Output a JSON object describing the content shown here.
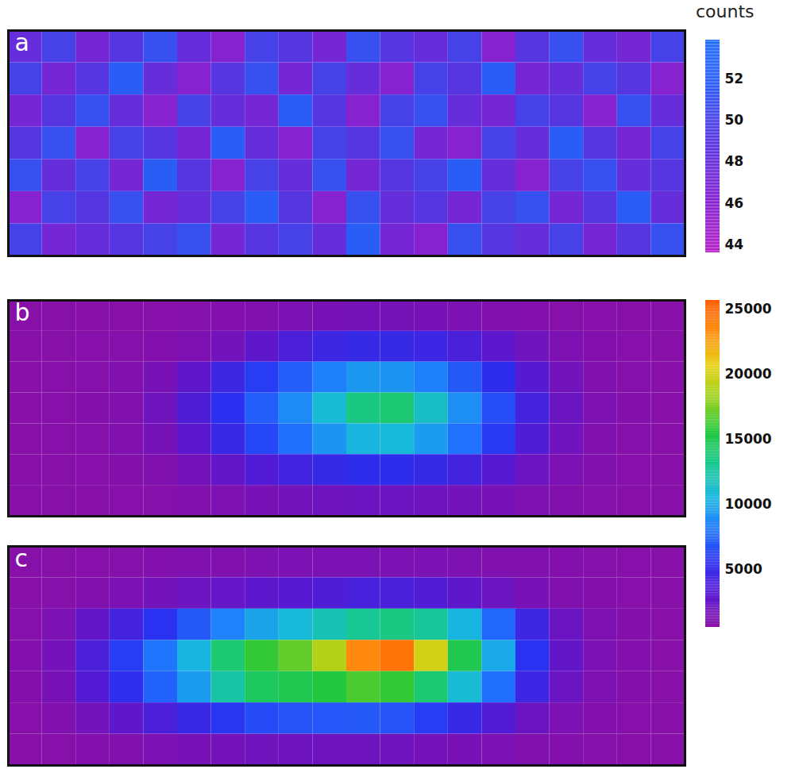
{
  "chart_data": {
    "type": "heatmap",
    "colorbars": [
      {
        "title": "counts",
        "range": [
          43.6,
          53.9
        ],
        "ticks": [
          44,
          46,
          48,
          50,
          52
        ],
        "panels": [
          "a"
        ]
      },
      {
        "range": [
          550,
          25700
        ],
        "ticks": [
          5000,
          10000,
          15000,
          20000,
          25000
        ],
        "panels": [
          "b",
          "c"
        ]
      }
    ],
    "panels": [
      {
        "label": "a",
        "cells": [
          [
            48,
            50,
            47,
            49,
            51,
            48,
            46,
            50,
            49,
            47,
            51,
            49,
            48,
            50,
            46,
            49,
            51,
            48,
            47,
            50
          ],
          [
            50,
            47,
            49,
            52,
            48,
            46,
            49,
            51,
            47,
            50,
            48,
            46,
            50,
            49,
            52,
            47,
            48,
            50,
            49,
            46
          ],
          [
            47,
            49,
            51,
            48,
            46,
            50,
            48,
            47,
            52,
            49,
            46,
            50,
            51,
            48,
            47,
            50,
            49,
            46,
            51,
            48
          ],
          [
            49,
            51,
            46,
            50,
            49,
            47,
            52,
            48,
            46,
            50,
            49,
            51,
            47,
            46,
            50,
            48,
            52,
            49,
            47,
            50
          ],
          [
            51,
            48,
            50,
            47,
            52,
            49,
            46,
            50,
            48,
            51,
            47,
            49,
            50,
            52,
            48,
            46,
            50,
            51,
            48,
            49
          ],
          [
            46,
            50,
            49,
            51,
            47,
            48,
            50,
            52,
            49,
            46,
            51,
            48,
            49,
            47,
            50,
            51,
            47,
            49,
            52,
            48
          ],
          [
            50,
            47,
            48,
            49,
            50,
            51,
            47,
            49,
            50,
            48,
            52,
            47,
            46,
            51,
            49,
            48,
            50,
            47,
            49,
            51
          ]
        ]
      },
      {
        "label": "b",
        "cells": [
          [
            700,
            700,
            700,
            700,
            750,
            800,
            900,
            1100,
            1300,
            1500,
            1600,
            1600,
            1500,
            1300,
            1100,
            900,
            800,
            750,
            700,
            700
          ],
          [
            700,
            700,
            750,
            800,
            900,
            1200,
            1800,
            2800,
            3800,
            4500,
            4900,
            4900,
            4600,
            3900,
            2900,
            1900,
            1200,
            900,
            750,
            700
          ],
          [
            700,
            750,
            800,
            1000,
            1500,
            2800,
            4500,
            6000,
            7200,
            8400,
            9300,
            9200,
            8400,
            7000,
            5300,
            3300,
            1800,
            1100,
            800,
            700
          ],
          [
            700,
            750,
            850,
            1100,
            1900,
            3600,
            5500,
            7200,
            8800,
            11000,
            13500,
            14000,
            11500,
            9000,
            6600,
            4200,
            2200,
            1200,
            850,
            700
          ],
          [
            700,
            750,
            800,
            1000,
            1600,
            3000,
            4800,
            6400,
            7800,
            9200,
            10500,
            10800,
            9500,
            7900,
            5900,
            3600,
            1900,
            1100,
            800,
            700
          ],
          [
            700,
            700,
            750,
            850,
            1100,
            1700,
            2600,
            3500,
            4300,
            4900,
            5300,
            5300,
            4900,
            4200,
            3200,
            2100,
            1300,
            950,
            750,
            700
          ],
          [
            700,
            700,
            700,
            750,
            800,
            950,
            1200,
            1500,
            1800,
            2000,
            2100,
            2100,
            2000,
            1800,
            1500,
            1200,
            950,
            800,
            700,
            700
          ]
        ]
      },
      {
        "label": "c",
        "cells": [
          [
            700,
            700,
            750,
            800,
            900,
            1000,
            1100,
            1200,
            1300,
            1400,
            1400,
            1400,
            1300,
            1200,
            1100,
            1000,
            900,
            800,
            750,
            700
          ],
          [
            700,
            800,
            1000,
            1300,
            1700,
            2100,
            2500,
            2900,
            3200,
            3600,
            4000,
            3900,
            3500,
            2800,
            2100,
            1500,
            1100,
            850,
            750,
            700
          ],
          [
            800,
            1300,
            2600,
            4200,
            5600,
            7000,
            8500,
            9800,
            10800,
            12000,
            13000,
            13500,
            12800,
            10500,
            7500,
            4500,
            2200,
            1200,
            850,
            700
          ],
          [
            900,
            1700,
            3800,
            6000,
            8000,
            10500,
            14000,
            16000,
            17000,
            19000,
            23500,
            24500,
            20000,
            15000,
            10000,
            5600,
            2600,
            1300,
            900,
            700
          ],
          [
            850,
            1500,
            3400,
            5400,
            7400,
            9500,
            12500,
            14500,
            15000,
            15500,
            16500,
            16000,
            14000,
            11000,
            7800,
            4600,
            2200,
            1200,
            850,
            700
          ],
          [
            750,
            1100,
            1800,
            2800,
            3800,
            4800,
            5800,
            6500,
            6800,
            6900,
            7000,
            6800,
            6000,
            4800,
            3500,
            2200,
            1300,
            900,
            750,
            700
          ],
          [
            700,
            750,
            900,
            1100,
            1300,
            1500,
            1700,
            1900,
            2000,
            2000,
            2000,
            1900,
            1700,
            1500,
            1300,
            1100,
            900,
            800,
            700,
            700
          ]
        ]
      }
    ]
  }
}
